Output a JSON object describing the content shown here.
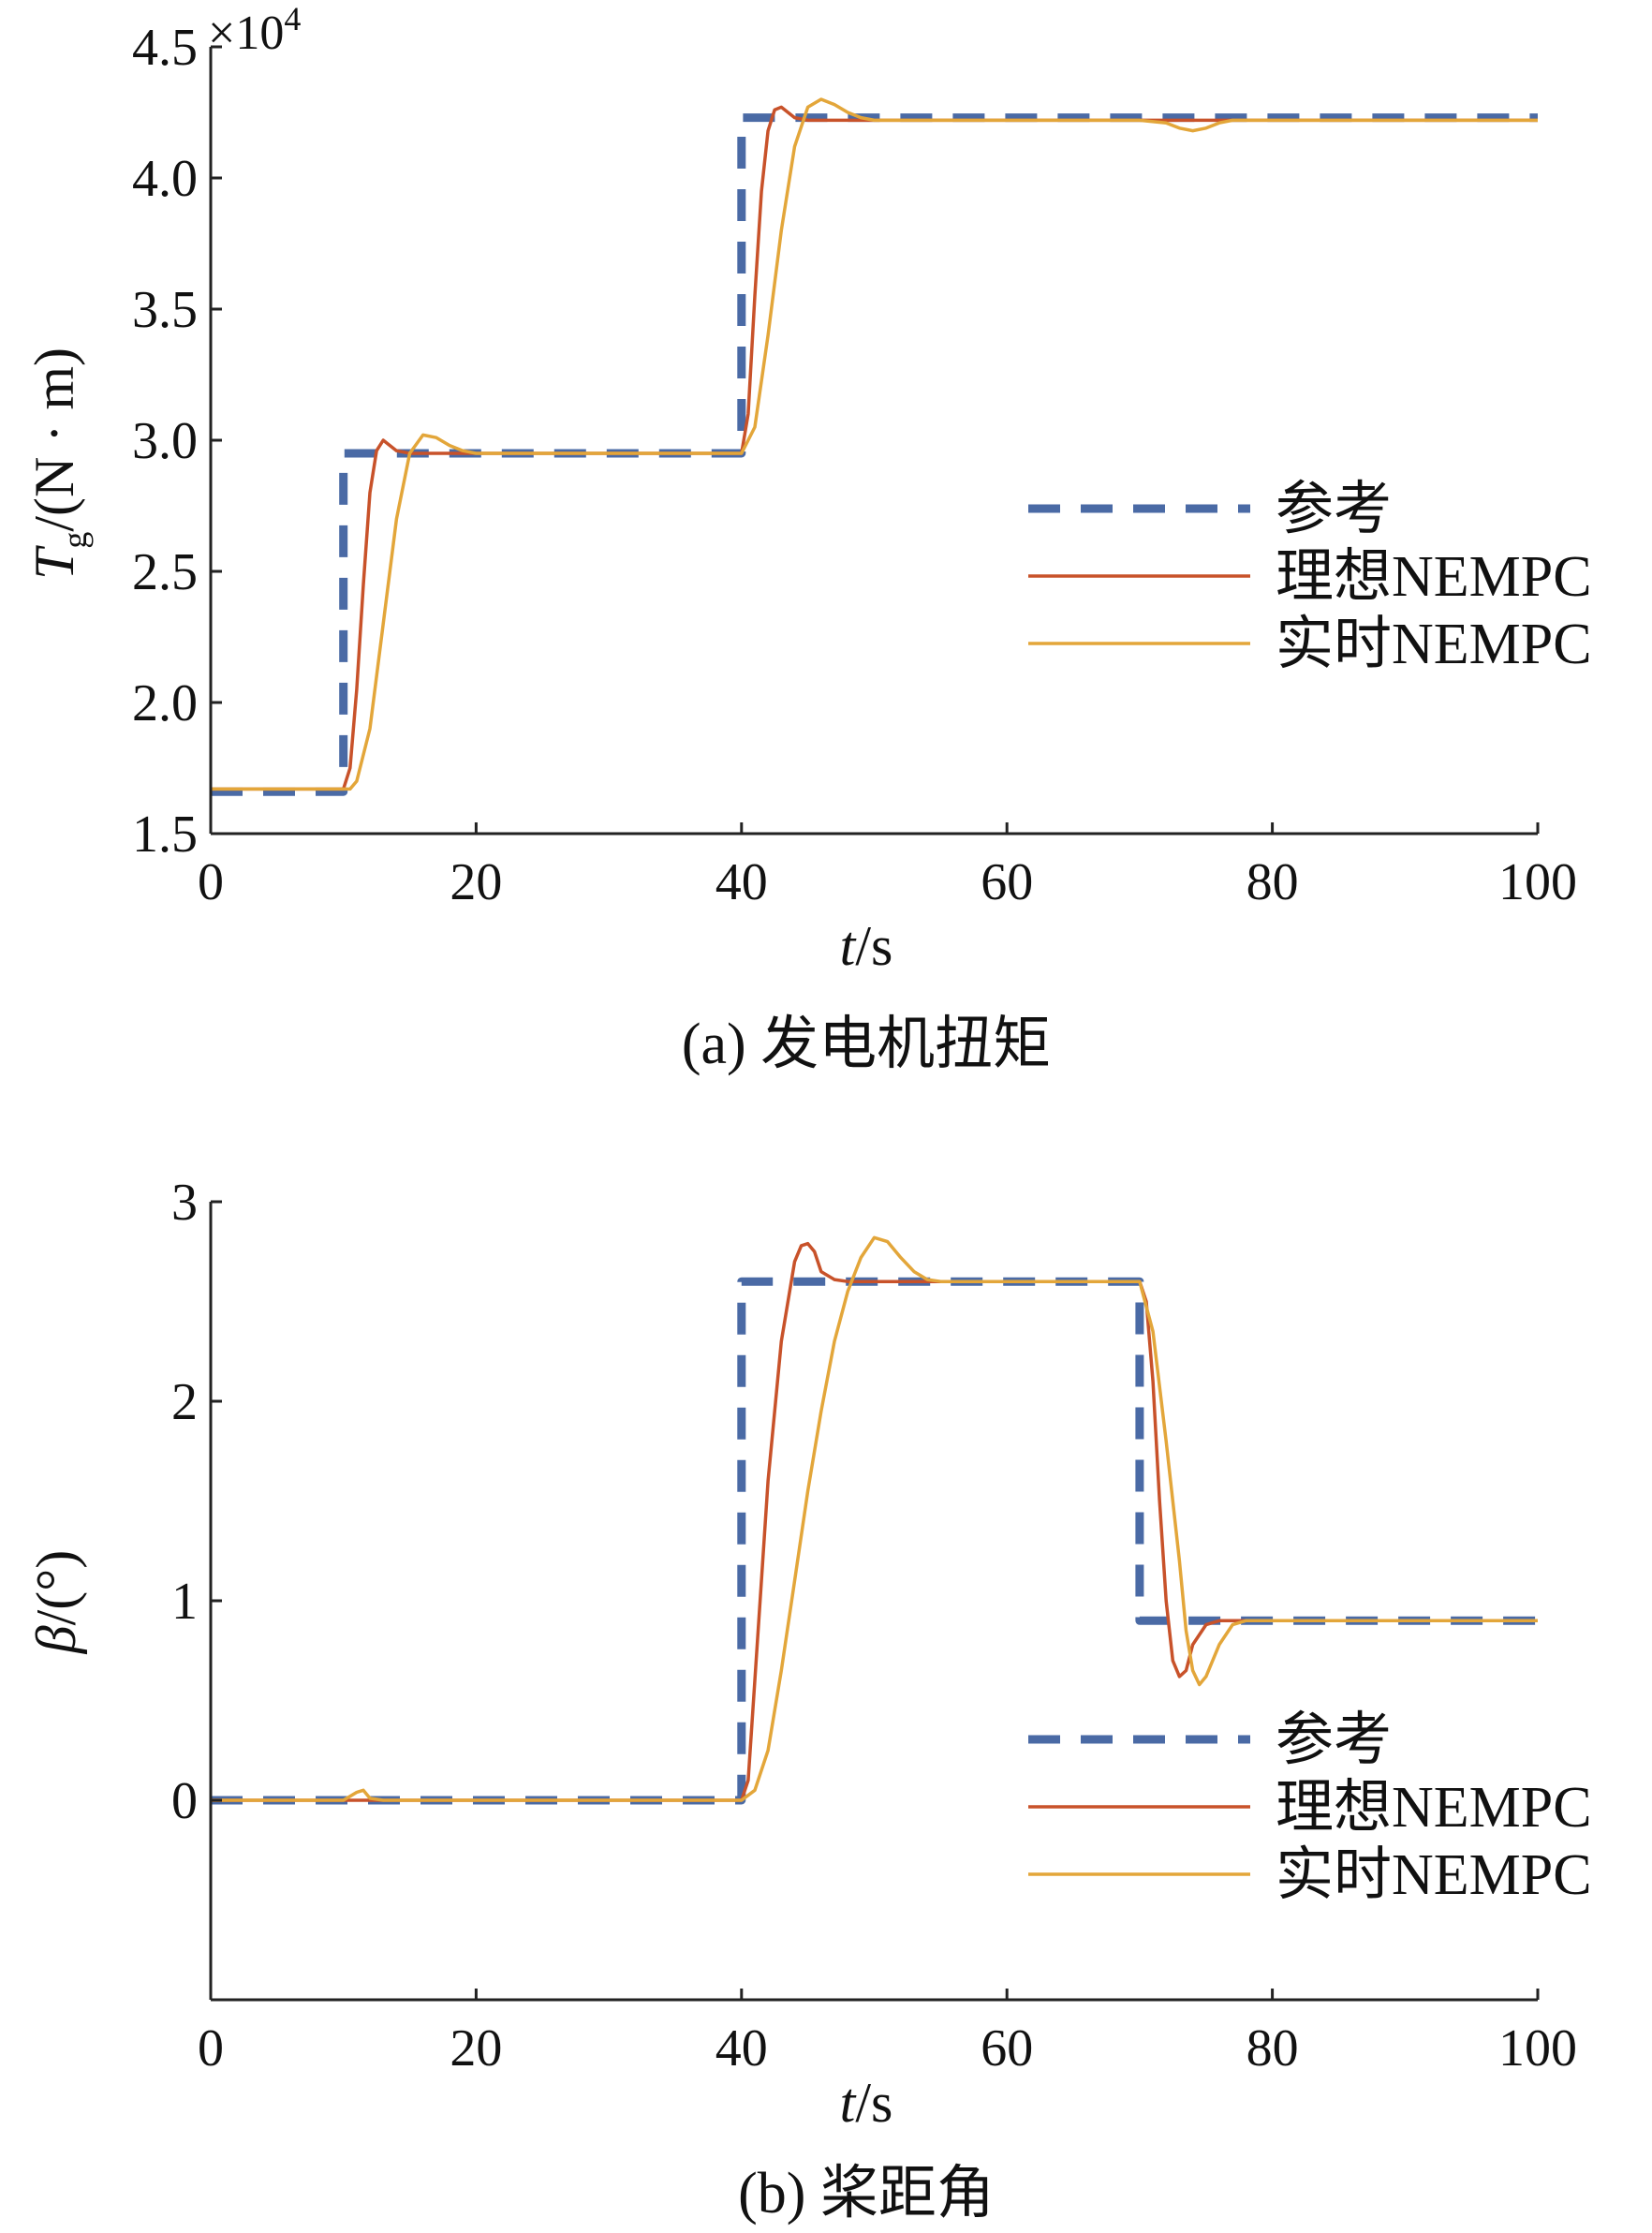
{
  "colors": {
    "ref": "#4a6aa5",
    "ideal": "#c8522a",
    "realtime": "#e3a63a",
    "axis": "#222222"
  },
  "legend_labels": [
    "参考",
    "理想NEMPC",
    "实时NEMPC"
  ],
  "chart_data": [
    {
      "type": "line",
      "caption": "(a) 发电机扭矩",
      "xlabel": "t/s",
      "ylabel": "Tg/(N · m)",
      "y_multiplier": "×10^4",
      "xlim": [
        0,
        100
      ],
      "ylim": [
        1.5,
        4.5
      ],
      "xticks": [
        0,
        20,
        40,
        60,
        80,
        100
      ],
      "yticks": [
        "1.5",
        "2.0",
        "2.5",
        "3.0",
        "3.5",
        "4.0",
        "4.5"
      ],
      "grid": false,
      "legend_position": "right",
      "series": [
        {
          "name": "参考",
          "style": "dashed",
          "x": [
            0,
            10,
            10,
            40,
            40,
            100
          ],
          "y": [
            1.66,
            1.66,
            2.95,
            2.95,
            4.23,
            4.23
          ]
        },
        {
          "name": "理想NEMPC",
          "style": "solid",
          "x": [
            0,
            10,
            10.5,
            11,
            11.5,
            12,
            12.5,
            13,
            13.5,
            14,
            15,
            16,
            18,
            40,
            40.5,
            41,
            41.5,
            42,
            42.5,
            43,
            43.5,
            44,
            45,
            46,
            48,
            70,
            73,
            100
          ],
          "y": [
            1.67,
            1.67,
            1.75,
            2.05,
            2.45,
            2.8,
            2.96,
            3.0,
            2.98,
            2.96,
            2.95,
            2.95,
            2.95,
            2.95,
            3.1,
            3.55,
            3.95,
            4.18,
            4.26,
            4.27,
            4.25,
            4.23,
            4.22,
            4.22,
            4.22,
            4.22,
            4.22,
            4.22
          ]
        },
        {
          "name": "实时NEMPC",
          "style": "solid",
          "x": [
            0,
            10.5,
            11,
            12,
            13,
            14,
            15,
            16,
            17,
            18,
            19,
            20,
            40,
            41,
            42,
            43,
            44,
            45,
            46,
            47,
            48,
            49,
            50,
            70,
            72,
            73,
            74,
            75,
            76,
            77,
            100
          ],
          "y": [
            1.67,
            1.67,
            1.7,
            1.9,
            2.3,
            2.7,
            2.95,
            3.02,
            3.01,
            2.98,
            2.96,
            2.95,
            2.95,
            3.05,
            3.4,
            3.8,
            4.12,
            4.27,
            4.3,
            4.28,
            4.25,
            4.23,
            4.22,
            4.22,
            4.21,
            4.19,
            4.18,
            4.19,
            4.21,
            4.22,
            4.22
          ]
        }
      ]
    },
    {
      "type": "line",
      "caption": "(b) 桨距角",
      "xlabel": "t/s",
      "ylabel": "β/(°)",
      "xlim": [
        0,
        100
      ],
      "ylim": [
        -1,
        3
      ],
      "xticks": [
        0,
        20,
        40,
        60,
        80,
        100
      ],
      "yticks": [
        "0",
        "1",
        "2",
        "3"
      ],
      "grid": false,
      "legend_position": "bottom-right",
      "series": [
        {
          "name": "参考",
          "style": "dashed",
          "x": [
            0,
            40,
            40,
            70,
            70,
            72,
            72,
            100
          ],
          "y": [
            0,
            0,
            2.6,
            2.6,
            0.9,
            0.9,
            0.9,
            0.9
          ]
        },
        {
          "name": "理想NEMPC",
          "style": "solid",
          "x": [
            0,
            40,
            40.5,
            41,
            42,
            43,
            44,
            44.5,
            45,
            45.5,
            46,
            47,
            48,
            50,
            70,
            70.5,
            71,
            71.5,
            72,
            72.5,
            73,
            73.5,
            74,
            75,
            76,
            78,
            100
          ],
          "y": [
            0,
            0,
            0.1,
            0.6,
            1.6,
            2.3,
            2.7,
            2.78,
            2.79,
            2.75,
            2.65,
            2.61,
            2.6,
            2.6,
            2.6,
            2.5,
            2.1,
            1.5,
            1.0,
            0.7,
            0.62,
            0.65,
            0.78,
            0.88,
            0.9,
            0.9,
            0.9
          ]
        },
        {
          "name": "实时NEMPC",
          "style": "solid",
          "x": [
            0,
            10,
            11,
            11.5,
            12,
            13,
            40,
            41,
            42,
            43,
            44,
            45,
            46,
            47,
            48,
            49,
            50,
            51,
            52,
            53,
            54,
            55,
            70,
            71,
            72,
            73,
            73.5,
            74,
            74.5,
            75,
            76,
            77,
            78,
            100
          ],
          "y": [
            0,
            0,
            0.04,
            0.05,
            0.01,
            0,
            0,
            0.05,
            0.25,
            0.65,
            1.1,
            1.55,
            1.95,
            2.3,
            2.55,
            2.72,
            2.82,
            2.8,
            2.72,
            2.65,
            2.61,
            2.6,
            2.6,
            2.35,
            1.8,
            1.2,
            0.85,
            0.65,
            0.58,
            0.62,
            0.78,
            0.88,
            0.9,
            0.9
          ]
        }
      ]
    }
  ]
}
